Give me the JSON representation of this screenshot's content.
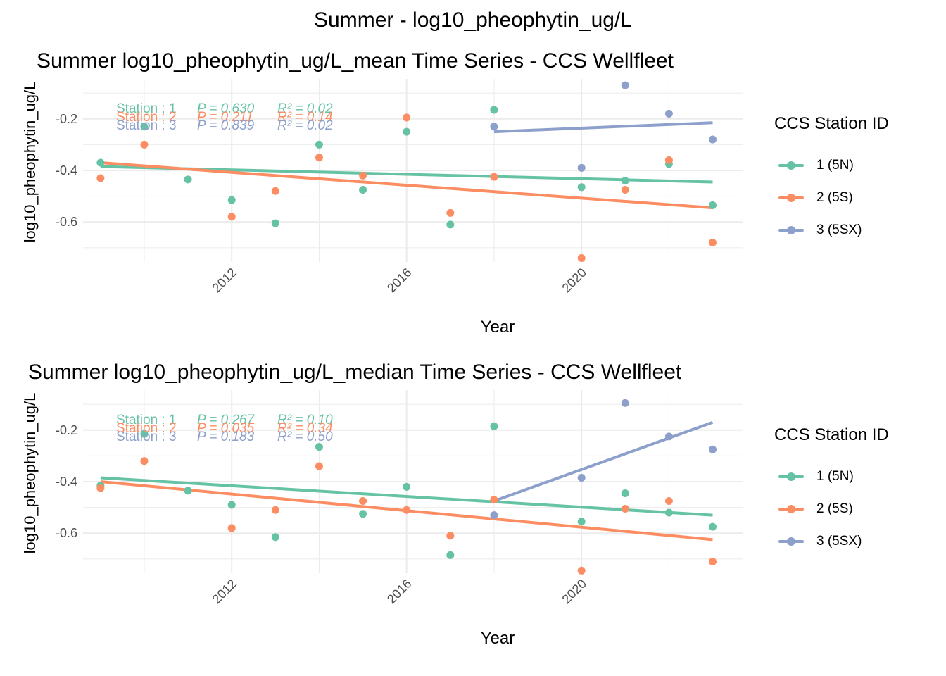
{
  "page_title": "Summer - log10_pheophytin_ug/L",
  "colors": {
    "station1": "#66c2a5",
    "station2": "#fc8d62",
    "station3": "#8da0cb",
    "grid": "#ebebeb",
    "axis_text": "#4d4d4d"
  },
  "legend": {
    "title": "CCS Station ID",
    "items": [
      {
        "label": "1 (5N)",
        "color": "#66c2a5"
      },
      {
        "label": "2 (5S)",
        "color": "#fc8d62"
      },
      {
        "label": "3 (5SX)",
        "color": "#8da0cb"
      }
    ]
  },
  "chart_data": [
    {
      "type": "scatter",
      "title": "Summer log10_pheophytin_ug/L_mean Time Series - CCS Wellfleet",
      "xlabel": "Year",
      "ylabel": "log10_pheophytin_ug/L",
      "xlim": [
        2008.6,
        2023.7
      ],
      "ylim": [
        -0.755,
        -0.045
      ],
      "x_ticks": [
        2012,
        2016,
        2020
      ],
      "y_ticks": [
        -0.6,
        -0.4,
        -0.2
      ],
      "grid": true,
      "legend_position": "right",
      "stats": [
        {
          "station": "Station : 1",
          "p": "P = 0.630",
          "r2": "R² = 0.02",
          "color": "#66c2a5"
        },
        {
          "station": "Station : 2",
          "p": "P = 0.211",
          "r2": "R² = 0.14",
          "color": "#fc8d62"
        },
        {
          "station": "Station : 3",
          "p": "P = 0.839",
          "r2": "R² = 0.02",
          "color": "#8da0cb"
        }
      ],
      "series": [
        {
          "name": "1 (5N)",
          "color": "#66c2a5",
          "points": [
            [
              2009,
              -0.37
            ],
            [
              2010,
              -0.23
            ],
            [
              2011,
              -0.435
            ],
            [
              2012,
              -0.515
            ],
            [
              2013,
              -0.605
            ],
            [
              2014,
              -0.3
            ],
            [
              2015,
              -0.475
            ],
            [
              2016,
              -0.25
            ],
            [
              2017,
              -0.61
            ],
            [
              2018,
              -0.165
            ],
            [
              2020,
              -0.465
            ],
            [
              2021,
              -0.44
            ],
            [
              2022,
              -0.375
            ],
            [
              2023,
              -0.535
            ]
          ],
          "trend": [
            [
              2009,
              -0.385
            ],
            [
              2023,
              -0.445
            ]
          ]
        },
        {
          "name": "2 (5S)",
          "color": "#fc8d62",
          "points": [
            [
              2009,
              -0.43
            ],
            [
              2010,
              -0.3
            ],
            [
              2012,
              -0.58
            ],
            [
              2013,
              -0.48
            ],
            [
              2014,
              -0.35
            ],
            [
              2015,
              -0.42
            ],
            [
              2016,
              -0.195
            ],
            [
              2017,
              -0.565
            ],
            [
              2018,
              -0.425
            ],
            [
              2020,
              -0.74
            ],
            [
              2021,
              -0.475
            ],
            [
              2022,
              -0.36
            ],
            [
              2023,
              -0.68
            ]
          ],
          "trend": [
            [
              2009,
              -0.37
            ],
            [
              2023,
              -0.545
            ]
          ]
        },
        {
          "name": "3 (5SX)",
          "color": "#8da0cb",
          "points": [
            [
              2018,
              -0.23
            ],
            [
              2020,
              -0.39
            ],
            [
              2021,
              -0.07
            ],
            [
              2022,
              -0.18
            ],
            [
              2023,
              -0.28
            ]
          ],
          "trend": [
            [
              2018,
              -0.25
            ],
            [
              2023,
              -0.215
            ]
          ]
        }
      ]
    },
    {
      "type": "scatter",
      "title": "Summer log10_pheophytin_ug/L_median Time Series - CCS Wellfleet",
      "xlabel": "Year",
      "ylabel": "log10_pheophytin_ug/L",
      "xlim": [
        2008.6,
        2023.7
      ],
      "ylim": [
        -0.755,
        -0.045
      ],
      "x_ticks": [
        2012,
        2016,
        2020
      ],
      "y_ticks": [
        -0.6,
        -0.4,
        -0.2
      ],
      "grid": true,
      "legend_position": "right",
      "stats": [
        {
          "station": "Station : 1",
          "p": "P = 0.267",
          "r2": "R² = 0.10",
          "color": "#66c2a5"
        },
        {
          "station": "Station : 2",
          "p": "P = 0.035",
          "r2": "R² = 0.34",
          "color": "#fc8d62"
        },
        {
          "station": "Station : 3",
          "p": "P = 0.183",
          "r2": "R² = 0.50",
          "color": "#8da0cb"
        }
      ],
      "series": [
        {
          "name": "1 (5N)",
          "color": "#66c2a5",
          "points": [
            [
              2009,
              -0.415
            ],
            [
              2010,
              -0.215
            ],
            [
              2011,
              -0.435
            ],
            [
              2012,
              -0.49
            ],
            [
              2013,
              -0.615
            ],
            [
              2014,
              -0.265
            ],
            [
              2015,
              -0.525
            ],
            [
              2016,
              -0.42
            ],
            [
              2017,
              -0.685
            ],
            [
              2018,
              -0.185
            ],
            [
              2020,
              -0.555
            ],
            [
              2021,
              -0.445
            ],
            [
              2022,
              -0.52
            ],
            [
              2023,
              -0.575
            ]
          ],
          "trend": [
            [
              2009,
              -0.385
            ],
            [
              2023,
              -0.53
            ]
          ]
        },
        {
          "name": "2 (5S)",
          "color": "#fc8d62",
          "points": [
            [
              2009,
              -0.425
            ],
            [
              2010,
              -0.32
            ],
            [
              2012,
              -0.58
            ],
            [
              2013,
              -0.51
            ],
            [
              2014,
              -0.34
            ],
            [
              2015,
              -0.475
            ],
            [
              2016,
              -0.51
            ],
            [
              2017,
              -0.61
            ],
            [
              2018,
              -0.47
            ],
            [
              2020,
              -0.745
            ],
            [
              2021,
              -0.505
            ],
            [
              2022,
              -0.475
            ],
            [
              2023,
              -0.71
            ]
          ],
          "trend": [
            [
              2009,
              -0.4
            ],
            [
              2023,
              -0.625
            ]
          ]
        },
        {
          "name": "3 (5SX)",
          "color": "#8da0cb",
          "points": [
            [
              2018,
              -0.53
            ],
            [
              2020,
              -0.385
            ],
            [
              2021,
              -0.095
            ],
            [
              2022,
              -0.225
            ],
            [
              2023,
              -0.275
            ]
          ],
          "trend": [
            [
              2018,
              -0.475
            ],
            [
              2023,
              -0.17
            ]
          ]
        }
      ]
    }
  ]
}
